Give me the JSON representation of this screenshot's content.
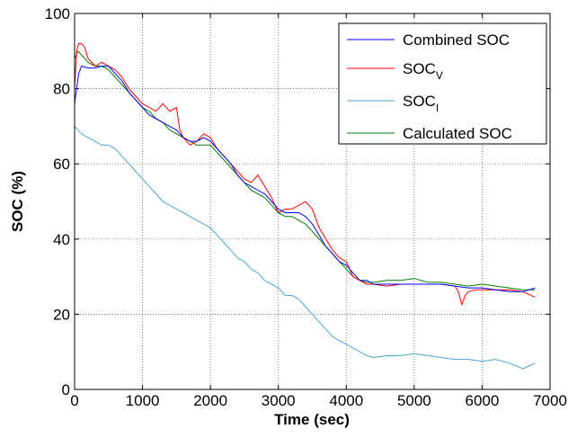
{
  "chart_data": {
    "type": "line",
    "title": "",
    "xlabel": "Time (sec)",
    "ylabel": "SOC (%)",
    "xlim": [
      0,
      7000
    ],
    "ylim": [
      0,
      100
    ],
    "xticks": [
      0,
      1000,
      2000,
      3000,
      4000,
      5000,
      6000,
      7000
    ],
    "yticks": [
      0,
      20,
      40,
      60,
      80,
      100
    ],
    "grid": true,
    "legend_position": "top-right",
    "series": [
      {
        "name": "Combined SOC",
        "legend_main": "Combined SOC",
        "legend_sub": "",
        "color": "#0000ff",
        "x": [
          0,
          30,
          60,
          100,
          200,
          300,
          400,
          500,
          600,
          700,
          800,
          900,
          1000,
          1100,
          1200,
          1300,
          1400,
          1500,
          1600,
          1700,
          1800,
          1900,
          2000,
          2100,
          2200,
          2300,
          2400,
          2500,
          2600,
          2700,
          2800,
          2900,
          3000,
          3100,
          3200,
          3300,
          3400,
          3500,
          3600,
          3700,
          3800,
          3900,
          4000,
          4100,
          4200,
          4300,
          4400,
          4600,
          4800,
          5000,
          5200,
          5400,
          5600,
          5800,
          6000,
          6200,
          6400,
          6600,
          6780
        ],
        "y": [
          76,
          80,
          84,
          86,
          85.5,
          85.5,
          86,
          86,
          84,
          82,
          79,
          77,
          75,
          73,
          72,
          71,
          70,
          69,
          67,
          66,
          66,
          67,
          66,
          64,
          62,
          60,
          57,
          55,
          54,
          53,
          52,
          50,
          48,
          47,
          47,
          47,
          46,
          44,
          41,
          38,
          36,
          34,
          33,
          31,
          29,
          29,
          28,
          28,
          28,
          28,
          28,
          28,
          27.5,
          27,
          27,
          26.5,
          26,
          26,
          27
        ]
      },
      {
        "name": "SOCV",
        "legend_main": "SOC",
        "legend_sub": "V",
        "color": "#ff0000",
        "x": [
          0,
          30,
          60,
          100,
          150,
          200,
          300,
          400,
          500,
          600,
          700,
          800,
          900,
          1000,
          1100,
          1200,
          1300,
          1400,
          1500,
          1550,
          1600,
          1700,
          1800,
          1900,
          2000,
          2100,
          2200,
          2300,
          2400,
          2500,
          2600,
          2700,
          2800,
          2900,
          3000,
          3100,
          3200,
          3300,
          3400,
          3500,
          3600,
          3700,
          3800,
          3900,
          4000,
          4100,
          4200,
          4300,
          4400,
          4600,
          4800,
          5000,
          5200,
          5400,
          5600,
          5650,
          5700,
          5750,
          5800,
          5900,
          6000,
          6200,
          6400,
          6600,
          6780
        ],
        "y": [
          80,
          90,
          92,
          92,
          91,
          88,
          86,
          87,
          86,
          85,
          83,
          80,
          78,
          76,
          75,
          74,
          76,
          74,
          75,
          69,
          67,
          65,
          66,
          68,
          67,
          64,
          62,
          60,
          58,
          56,
          55,
          57,
          54,
          51,
          47,
          48,
          48,
          49,
          50,
          48,
          43,
          40,
          37,
          35,
          34,
          30,
          29,
          28,
          28,
          27.5,
          28,
          28,
          28,
          28,
          27.5,
          26,
          22.5,
          25,
          26,
          26.5,
          26.5,
          26.5,
          26.5,
          26,
          24.5
        ]
      },
      {
        "name": "SOCI",
        "legend_main": "SOC",
        "legend_sub": "I",
        "color": "#47a6db",
        "x": [
          0,
          100,
          200,
          300,
          400,
          500,
          600,
          700,
          800,
          900,
          1000,
          1100,
          1200,
          1300,
          1400,
          1500,
          1600,
          1700,
          1800,
          1900,
          2000,
          2100,
          2200,
          2300,
          2400,
          2500,
          2600,
          2700,
          2800,
          2900,
          3000,
          3100,
          3200,
          3300,
          3400,
          3500,
          3600,
          3700,
          3800,
          3900,
          4000,
          4100,
          4200,
          4300,
          4400,
          4600,
          4800,
          5000,
          5200,
          5400,
          5600,
          5800,
          6000,
          6200,
          6400,
          6600,
          6780
        ],
        "y": [
          70,
          68,
          67,
          66,
          65,
          65,
          64,
          62,
          60,
          58,
          56,
          54,
          52,
          50,
          49,
          48,
          47,
          46,
          45,
          44,
          43,
          41,
          39,
          37,
          35,
          34,
          32,
          31,
          29,
          28,
          27,
          25,
          25,
          24,
          22,
          20,
          18,
          16,
          14,
          13,
          12,
          11,
          10,
          9,
          8.5,
          9,
          9,
          9.5,
          9,
          8.5,
          8,
          8,
          7.5,
          8,
          7,
          5.5,
          7
        ]
      },
      {
        "name": "Calculated SOC",
        "legend_main": "Calculated SOC",
        "legend_sub": "",
        "color": "#008000",
        "x": [
          0,
          50,
          100,
          200,
          300,
          400,
          500,
          600,
          700,
          800,
          900,
          1000,
          1100,
          1200,
          1300,
          1400,
          1500,
          1600,
          1700,
          1800,
          1900,
          2000,
          2100,
          2200,
          2300,
          2400,
          2500,
          2600,
          2700,
          2800,
          2900,
          3000,
          3100,
          3200,
          3300,
          3400,
          3500,
          3600,
          3700,
          3800,
          3900,
          4000,
          4100,
          4200,
          4300,
          4400,
          4600,
          4800,
          5000,
          5200,
          5400,
          5600,
          5800,
          6000,
          6200,
          6400,
          6600,
          6780
        ],
        "y": [
          88,
          90,
          89,
          87,
          86,
          86,
          85,
          83,
          81,
          79,
          77,
          75,
          74,
          72,
          71,
          69,
          68,
          67,
          66,
          65,
          65,
          65,
          63,
          61,
          59,
          57,
          55,
          53,
          52,
          51,
          49,
          47,
          46,
          46,
          45,
          44,
          42,
          40,
          38,
          36,
          34,
          32,
          30,
          29,
          28.5,
          28.5,
          29,
          29,
          29.5,
          28.5,
          28.5,
          28,
          27.5,
          28,
          27.5,
          27,
          26.5,
          26.5
        ]
      }
    ]
  }
}
